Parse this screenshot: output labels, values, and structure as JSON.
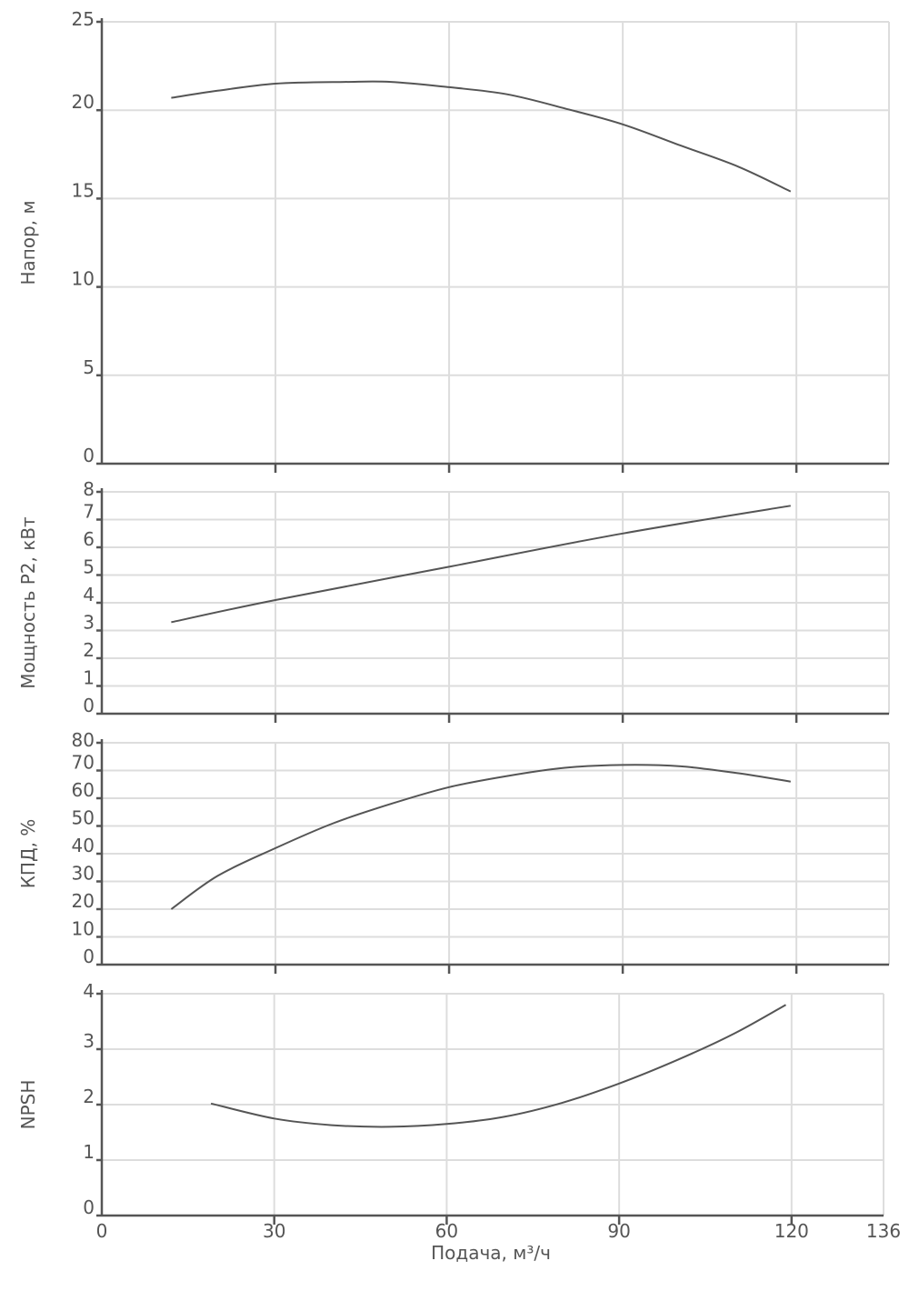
{
  "chart_data": [
    {
      "type": "line",
      "ylabel": "Напор, м",
      "xlabel": "",
      "xlim": [
        0,
        136
      ],
      "ylim": [
        0,
        25
      ],
      "x_ticks": [
        0,
        30,
        60,
        90,
        120,
        136
      ],
      "x_tick_labels": [
        "",
        "",
        "",
        "",
        "",
        ""
      ],
      "y_ticks": [
        0,
        5,
        10,
        15,
        20,
        25
      ],
      "grid": true,
      "series": [
        {
          "x": [
            12,
            20,
            30,
            42,
            50,
            60,
            70,
            80,
            90,
            100,
            110,
            119
          ],
          "values": [
            20.7,
            21.1,
            21.5,
            21.6,
            21.6,
            21.3,
            20.9,
            20.1,
            19.2,
            18.0,
            16.8,
            15.4
          ]
        }
      ]
    },
    {
      "type": "line",
      "ylabel": "Мощность P2, кВт",
      "xlabel": "",
      "xlim": [
        0,
        136
      ],
      "ylim": [
        0,
        8
      ],
      "x_ticks": [
        0,
        30,
        60,
        90,
        120,
        136
      ],
      "x_tick_labels": [
        "",
        "",
        "",
        "",
        "",
        ""
      ],
      "y_ticks": [
        0,
        1,
        2,
        3,
        4,
        5,
        6,
        7,
        8
      ],
      "grid": true,
      "series": [
        {
          "x": [
            12,
            30,
            60,
            90,
            119
          ],
          "values": [
            3.3,
            4.1,
            5.3,
            6.5,
            7.5
          ]
        }
      ]
    },
    {
      "type": "line",
      "ylabel": "КПД, %",
      "xlabel": "",
      "xlim": [
        0,
        136
      ],
      "ylim": [
        0,
        80
      ],
      "x_ticks": [
        0,
        30,
        60,
        90,
        120,
        136
      ],
      "x_tick_labels": [
        "",
        "",
        "",
        "",
        "",
        ""
      ],
      "y_ticks": [
        0,
        10,
        20,
        30,
        40,
        50,
        60,
        70,
        80
      ],
      "grid": true,
      "series": [
        {
          "x": [
            12,
            20,
            30,
            40,
            50,
            60,
            70,
            80,
            90,
            100,
            110,
            119
          ],
          "values": [
            20,
            32,
            42,
            51,
            58,
            64,
            68,
            71,
            72,
            71.5,
            69,
            66
          ]
        }
      ]
    },
    {
      "type": "line",
      "ylabel": "NPSH",
      "xlabel": "Подача, м³/ч",
      "xlim": [
        0,
        136
      ],
      "ylim": [
        0,
        4
      ],
      "x_ticks": [
        0,
        30,
        60,
        90,
        120,
        136
      ],
      "x_tick_labels": [
        "0",
        "30",
        "60",
        "90",
        "120",
        "136"
      ],
      "y_ticks": [
        0,
        1,
        2,
        3,
        4
      ],
      "grid": true,
      "series": [
        {
          "x": [
            19,
            30,
            40,
            50,
            60,
            70,
            80,
            90,
            100,
            110,
            119
          ],
          "values": [
            2.02,
            1.75,
            1.63,
            1.6,
            1.65,
            1.78,
            2.03,
            2.38,
            2.8,
            3.28,
            3.8
          ]
        }
      ]
    }
  ]
}
